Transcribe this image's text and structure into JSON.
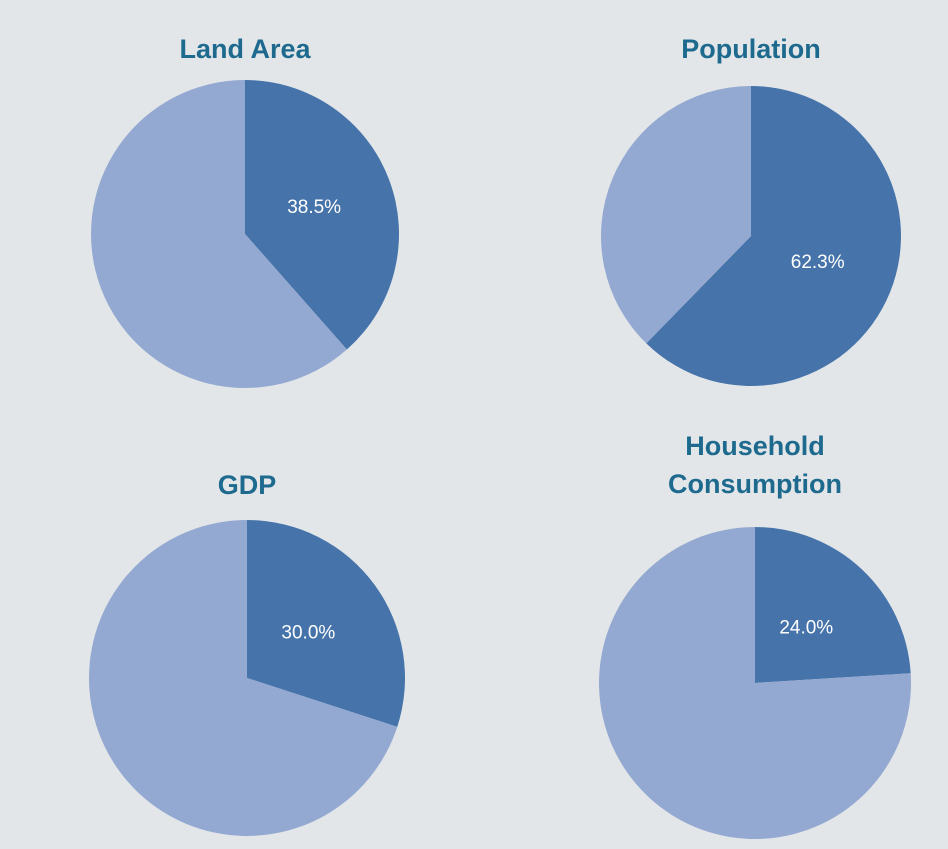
{
  "colors": {
    "background": "#e3e6e9",
    "highlight_slice": "#4674aa",
    "remainder_slice": "#94a9d1",
    "title": "#1d6a8e",
    "label": "#ffffff"
  },
  "chart_data": [
    {
      "type": "pie",
      "title": "Land Area",
      "slices": [
        {
          "value": 38.5,
          "label": "38.5%",
          "role": "highlight"
        },
        {
          "value": 61.5,
          "label": "",
          "role": "remainder"
        }
      ]
    },
    {
      "type": "pie",
      "title": "Population",
      "slices": [
        {
          "value": 62.3,
          "label": "62.3%",
          "role": "highlight"
        },
        {
          "value": 37.7,
          "label": "",
          "role": "remainder"
        }
      ]
    },
    {
      "type": "pie",
      "title": "GDP",
      "slices": [
        {
          "value": 30.0,
          "label": "30.0%",
          "role": "highlight"
        },
        {
          "value": 70.0,
          "label": "",
          "role": "remainder"
        }
      ]
    },
    {
      "type": "pie",
      "title": "Household Consumption",
      "title_lines": [
        "Household",
        "Consumption"
      ],
      "slices": [
        {
          "value": 24.0,
          "label": "24.0%",
          "role": "highlight"
        },
        {
          "value": 76.0,
          "label": "",
          "role": "remainder"
        }
      ]
    }
  ]
}
